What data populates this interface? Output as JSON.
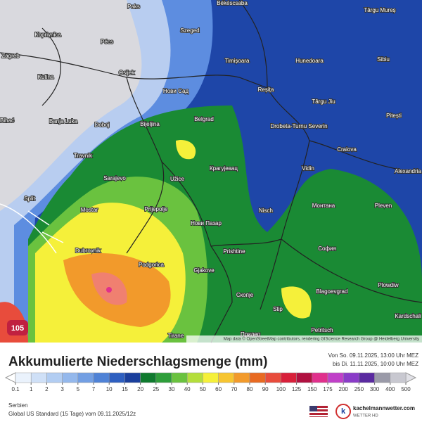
{
  "map": {
    "cities": [
      "Paks",
      "Békéscsaba",
      "Târgu Mureș",
      "Koprivnica",
      "Szeged",
      "Pécs",
      "Zagreb",
      "Timișoara",
      "Hunedoara",
      "Sibiu",
      "Kutina",
      "Osijek",
      "Нови Сад",
      "Reșița",
      "Târgu Jiu",
      "Pitești",
      "Bihać",
      "Banja Luka",
      "Doboj",
      "Bijeljina",
      "Belgrad",
      "Drobeta-Turnu Severin",
      "Craiova",
      "Travnik",
      "Крагујевац",
      "Vidin",
      "Alexandria",
      "Sarajevo",
      "Užice",
      "Split",
      "Mostar",
      "Prijepolje",
      "Nisch",
      "Монтана",
      "Pleven",
      "Нови Пазар",
      "Dubrovnik",
      "Prishtine",
      "София",
      "Podgorica",
      "Gjakove",
      "Plowdiw",
      "Скопје",
      "Blagoevgrad",
      "Stip",
      "Kardschali",
      "Petritsch",
      "Tirane",
      "Прилеп"
    ],
    "max_label": "105",
    "credit": "Map data © OpenStreetMap contributors, rendering GIScience Research Group @ Heidelberg University"
  },
  "header": {
    "title": "Akkumulierte Niederschlagsmenge (mm)",
    "from": "Von So. 09.11.2025, 13:00 Uhr MEZ",
    "to": "bis Di. 11.11.2025, 10:00 Uhr MEZ"
  },
  "legend": {
    "labels": [
      0.1,
      1,
      2,
      3,
      5,
      7,
      10,
      15,
      20,
      25,
      30,
      40,
      50,
      60,
      70,
      80,
      90,
      100,
      125,
      150,
      175,
      200,
      250,
      300,
      400,
      500
    ],
    "colors": [
      "#ffffff",
      "#eaf2fc",
      "#cfe0f7",
      "#b2cdf2",
      "#94b8ec",
      "#739fe3",
      "#4f82d6",
      "#2e5fc0",
      "#1a3f9c",
      "#0f7a2e",
      "#2e9e3a",
      "#6ac23f",
      "#b4de3c",
      "#f5f03a",
      "#f7c531",
      "#f29a2b",
      "#e86a22",
      "#e84c3c",
      "#d8203a",
      "#b01040",
      "#e0308c",
      "#c040c8",
      "#8a3cc8",
      "#5a2aa0",
      "#9a9aa8",
      "#c8c8d0",
      "#e0e0e6"
    ]
  },
  "footer": {
    "region": "Serbien",
    "model": "Global US Standard (15 Tage) vom 09.11.2025/12z",
    "site": "kachelmannwetter.com",
    "tagline": "WETTER HD"
  }
}
